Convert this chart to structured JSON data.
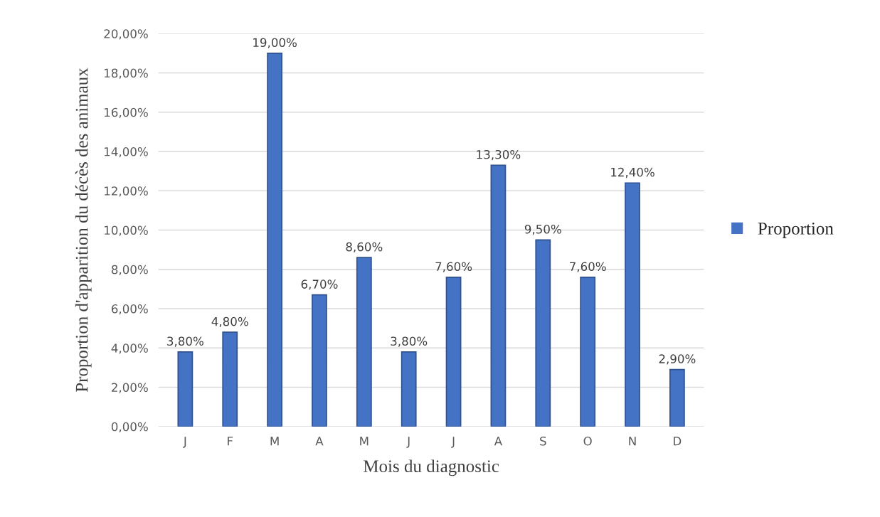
{
  "chart_data": {
    "type": "bar",
    "xlabel": "Mois du diagnostic",
    "ylabel": "Proportion d'apparition du décès des animaux",
    "categories": [
      "J",
      "F",
      "M",
      "A",
      "M",
      "J",
      "J",
      "A",
      "S",
      "O",
      "N",
      "D"
    ],
    "series": [
      {
        "name": "Proportion",
        "color": "#4472c4",
        "values": [
          3.8,
          4.8,
          19.0,
          6.7,
          8.6,
          3.8,
          7.6,
          13.3,
          9.5,
          7.6,
          12.4,
          2.9
        ],
        "value_labels": [
          "3,80%",
          "4,80%",
          "19,00%",
          "6,70%",
          "8,60%",
          "3,80%",
          "7,60%",
          "13,30%",
          "9,50%",
          "7,60%",
          "12,40%",
          "2,90%"
        ]
      }
    ],
    "ylim": [
      0,
      20
    ],
    "yticks": [
      {
        "value": 0,
        "label": "0,00%"
      },
      {
        "value": 2,
        "label": "2,00%"
      },
      {
        "value": 4,
        "label": "4,00%"
      },
      {
        "value": 6,
        "label": "6,00%"
      },
      {
        "value": 8,
        "label": "8,00%"
      },
      {
        "value": 10,
        "label": "10,00%"
      },
      {
        "value": 12,
        "label": "12,00%"
      },
      {
        "value": 14,
        "label": "14,00%"
      },
      {
        "value": 16,
        "label": "16,00%"
      },
      {
        "value": 18,
        "label": "18,00%"
      },
      {
        "value": 20,
        "label": "20,00%"
      }
    ],
    "grid": "y",
    "legend": "right"
  }
}
